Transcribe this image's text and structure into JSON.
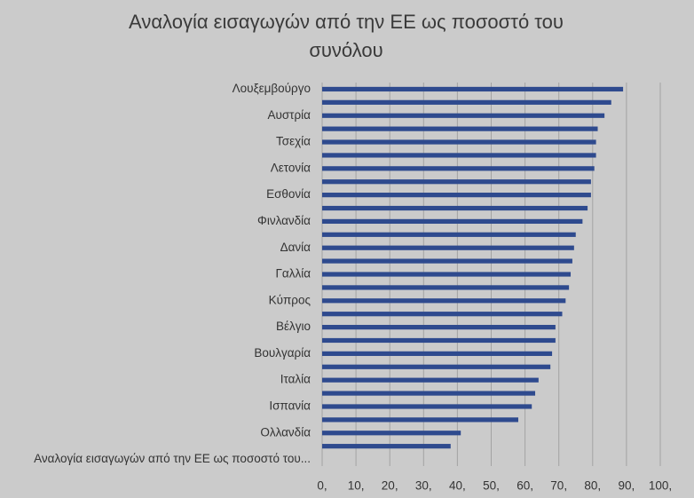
{
  "chart_data": {
    "type": "barh",
    "title": [
      "Αναλογία εισαγωγών από την ΕΕ ως ποσοστό του",
      "συνόλου"
    ],
    "categories": [
      "Λουξεμβούργο",
      null,
      "Αυστρία",
      null,
      "Τσεχία",
      null,
      "Λετονία",
      null,
      "Εσθονία",
      null,
      "Φινλανδία",
      null,
      "Δανία",
      null,
      "Γαλλία",
      null,
      "Κύπρος",
      null,
      "Βέλγιο",
      null,
      "Βουλγαρία",
      null,
      "Ιταλία",
      null,
      "Ισπανία",
      null,
      "Ολλανδία",
      null,
      "Αναλογία εισαγωγών από την ΕΕ ως ποσοστό του..."
    ],
    "values": [
      89,
      85.5,
      83.5,
      81.5,
      81,
      81,
      80.5,
      79.5,
      79.5,
      78.5,
      77,
      75,
      74.5,
      74,
      73.5,
      73,
      72,
      71,
      69,
      69,
      68,
      67.5,
      64,
      63,
      62,
      58,
      41,
      38,
      null
    ],
    "color": "#2e4a8e",
    "xlim": [
      0,
      100
    ],
    "xticks": [
      {
        "value": 0,
        "label": "0,"
      },
      {
        "value": 10,
        "label": "10,"
      },
      {
        "value": 20,
        "label": "20,"
      },
      {
        "value": 30,
        "label": "30,"
      },
      {
        "value": 40,
        "label": "40,"
      },
      {
        "value": 50,
        "label": "50,"
      },
      {
        "value": 60,
        "label": "60,"
      },
      {
        "value": 70,
        "label": "70,"
      },
      {
        "value": 80,
        "label": "80,"
      },
      {
        "value": 90,
        "label": "90,"
      },
      {
        "value": 100,
        "label": "100,"
      }
    ],
    "grid": true
  }
}
